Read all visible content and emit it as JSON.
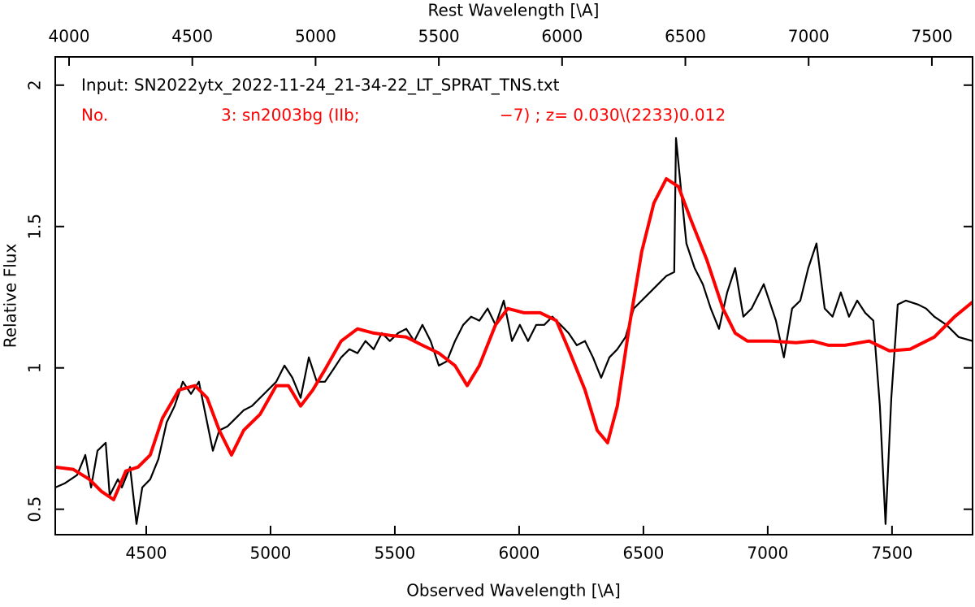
{
  "chart_data": {
    "type": "line",
    "xlabel": "Observed Wavelength [\\A]",
    "x2label": "Rest Wavelength [\\A]",
    "ylabel": "Relative Flux",
    "xlim": [
      4134,
      7824
    ],
    "xticks": [
      4500,
      5000,
      5500,
      6000,
      6500,
      7000,
      7500
    ],
    "x2lim": [
      3944,
      7665
    ],
    "x2ticks": [
      4000,
      4500,
      5000,
      5500,
      6000,
      6500,
      7000,
      7500
    ],
    "ylim": [
      0.41,
      2.1
    ],
    "yticks": [
      0.5,
      1,
      1.5,
      2
    ],
    "annotations": [
      {
        "text": "Input: SN2022ytx_2022-11-24_21-34-22_LT_SPRAT_TNS.txt",
        "color": "#000000"
      },
      {
        "text": "No.",
        "color": "#ff0000"
      },
      {
        "text": "3: sn2003bg (IIb;",
        "color": "#ff0000"
      },
      {
        "text": "−7) ; z= 0.030\\(2233)0.012",
        "color": "#ff0000"
      }
    ],
    "series": [
      {
        "color": "#000000",
        "width": 2.2,
        "x": [
          4134,
          4173,
          4222,
          4255,
          4278,
          4304,
          4337,
          4353,
          4386,
          4402,
          4435,
          4461,
          4484,
          4516,
          4549,
          4582,
          4614,
          4647,
          4680,
          4712,
          4745,
          4768,
          4794,
          4827,
          4860,
          4892,
          4925,
          4958,
          4990,
          5023,
          5056,
          5088,
          5121,
          5154,
          5186,
          5219,
          5252,
          5284,
          5317,
          5350,
          5382,
          5415,
          5448,
          5480,
          5513,
          5546,
          5578,
          5611,
          5644,
          5677,
          5709,
          5742,
          5775,
          5807,
          5840,
          5873,
          5905,
          5938,
          5971,
          6003,
          6036,
          6069,
          6101,
          6134,
          6167,
          6199,
          6232,
          6265,
          6297,
          6330,
          6363,
          6395,
          6428,
          6461,
          6493,
          6526,
          6559,
          6592,
          6624,
          6631,
          6650,
          6673,
          6706,
          6739,
          6771,
          6804,
          6837,
          6869,
          6902,
          6935,
          6984,
          7033,
          7065,
          7098,
          7131,
          7163,
          7196,
          7229,
          7261,
          7294,
          7327,
          7360,
          7392,
          7425,
          7451,
          7474,
          7497,
          7523,
          7556,
          7605,
          7637,
          7670,
          7719,
          7768,
          7824
        ],
        "values": [
          0.577,
          0.592,
          0.621,
          0.692,
          0.577,
          0.707,
          0.735,
          0.549,
          0.606,
          0.577,
          0.649,
          0.448,
          0.577,
          0.606,
          0.678,
          0.807,
          0.865,
          0.951,
          0.908,
          0.951,
          0.807,
          0.707,
          0.779,
          0.793,
          0.822,
          0.85,
          0.865,
          0.894,
          0.922,
          0.951,
          1.008,
          0.965,
          0.894,
          1.037,
          0.951,
          0.951,
          0.994,
          1.037,
          1.066,
          1.052,
          1.095,
          1.066,
          1.123,
          1.095,
          1.123,
          1.138,
          1.095,
          1.152,
          1.095,
          1.008,
          1.023,
          1.095,
          1.152,
          1.181,
          1.167,
          1.21,
          1.152,
          1.238,
          1.095,
          1.152,
          1.095,
          1.152,
          1.152,
          1.181,
          1.152,
          1.123,
          1.08,
          1.095,
          1.037,
          0.965,
          1.037,
          1.066,
          1.109,
          1.21,
          1.238,
          1.267,
          1.296,
          1.325,
          1.339,
          1.813,
          1.641,
          1.44,
          1.353,
          1.296,
          1.21,
          1.138,
          1.267,
          1.353,
          1.181,
          1.21,
          1.296,
          1.167,
          1.037,
          1.21,
          1.238,
          1.353,
          1.44,
          1.21,
          1.181,
          1.267,
          1.181,
          1.238,
          1.195,
          1.167,
          0.865,
          0.448,
          0.894,
          1.224,
          1.238,
          1.224,
          1.21,
          1.181,
          1.152,
          1.109,
          1.095
        ]
      },
      {
        "color": "#ff0000",
        "width": 4,
        "x": [
          4134,
          4206,
          4271,
          4320,
          4369,
          4418,
          4467,
          4516,
          4565,
          4631,
          4696,
          4745,
          4794,
          4843,
          4892,
          4958,
          5023,
          5072,
          5121,
          5170,
          5219,
          5284,
          5350,
          5415,
          5480,
          5546,
          5611,
          5677,
          5742,
          5791,
          5840,
          5905,
          5954,
          6020,
          6085,
          6150,
          6199,
          6265,
          6314,
          6356,
          6395,
          6444,
          6493,
          6542,
          6592,
          6641,
          6690,
          6755,
          6820,
          6869,
          6918,
          7016,
          7114,
          7180,
          7245,
          7311,
          7408,
          7490,
          7572,
          7670,
          7752,
          7824
        ],
        "values": [
          0.649,
          0.641,
          0.606,
          0.563,
          0.534,
          0.635,
          0.649,
          0.692,
          0.822,
          0.922,
          0.937,
          0.894,
          0.779,
          0.692,
          0.779,
          0.836,
          0.937,
          0.937,
          0.865,
          0.922,
          0.994,
          1.095,
          1.138,
          1.123,
          1.115,
          1.109,
          1.08,
          1.052,
          1.008,
          0.937,
          1.008,
          1.152,
          1.21,
          1.195,
          1.195,
          1.167,
          1.066,
          0.922,
          0.779,
          0.735,
          0.865,
          1.152,
          1.411,
          1.583,
          1.669,
          1.641,
          1.526,
          1.382,
          1.21,
          1.123,
          1.095,
          1.095,
          1.089,
          1.095,
          1.08,
          1.08,
          1.095,
          1.06,
          1.066,
          1.109,
          1.181,
          1.233
        ]
      }
    ]
  }
}
